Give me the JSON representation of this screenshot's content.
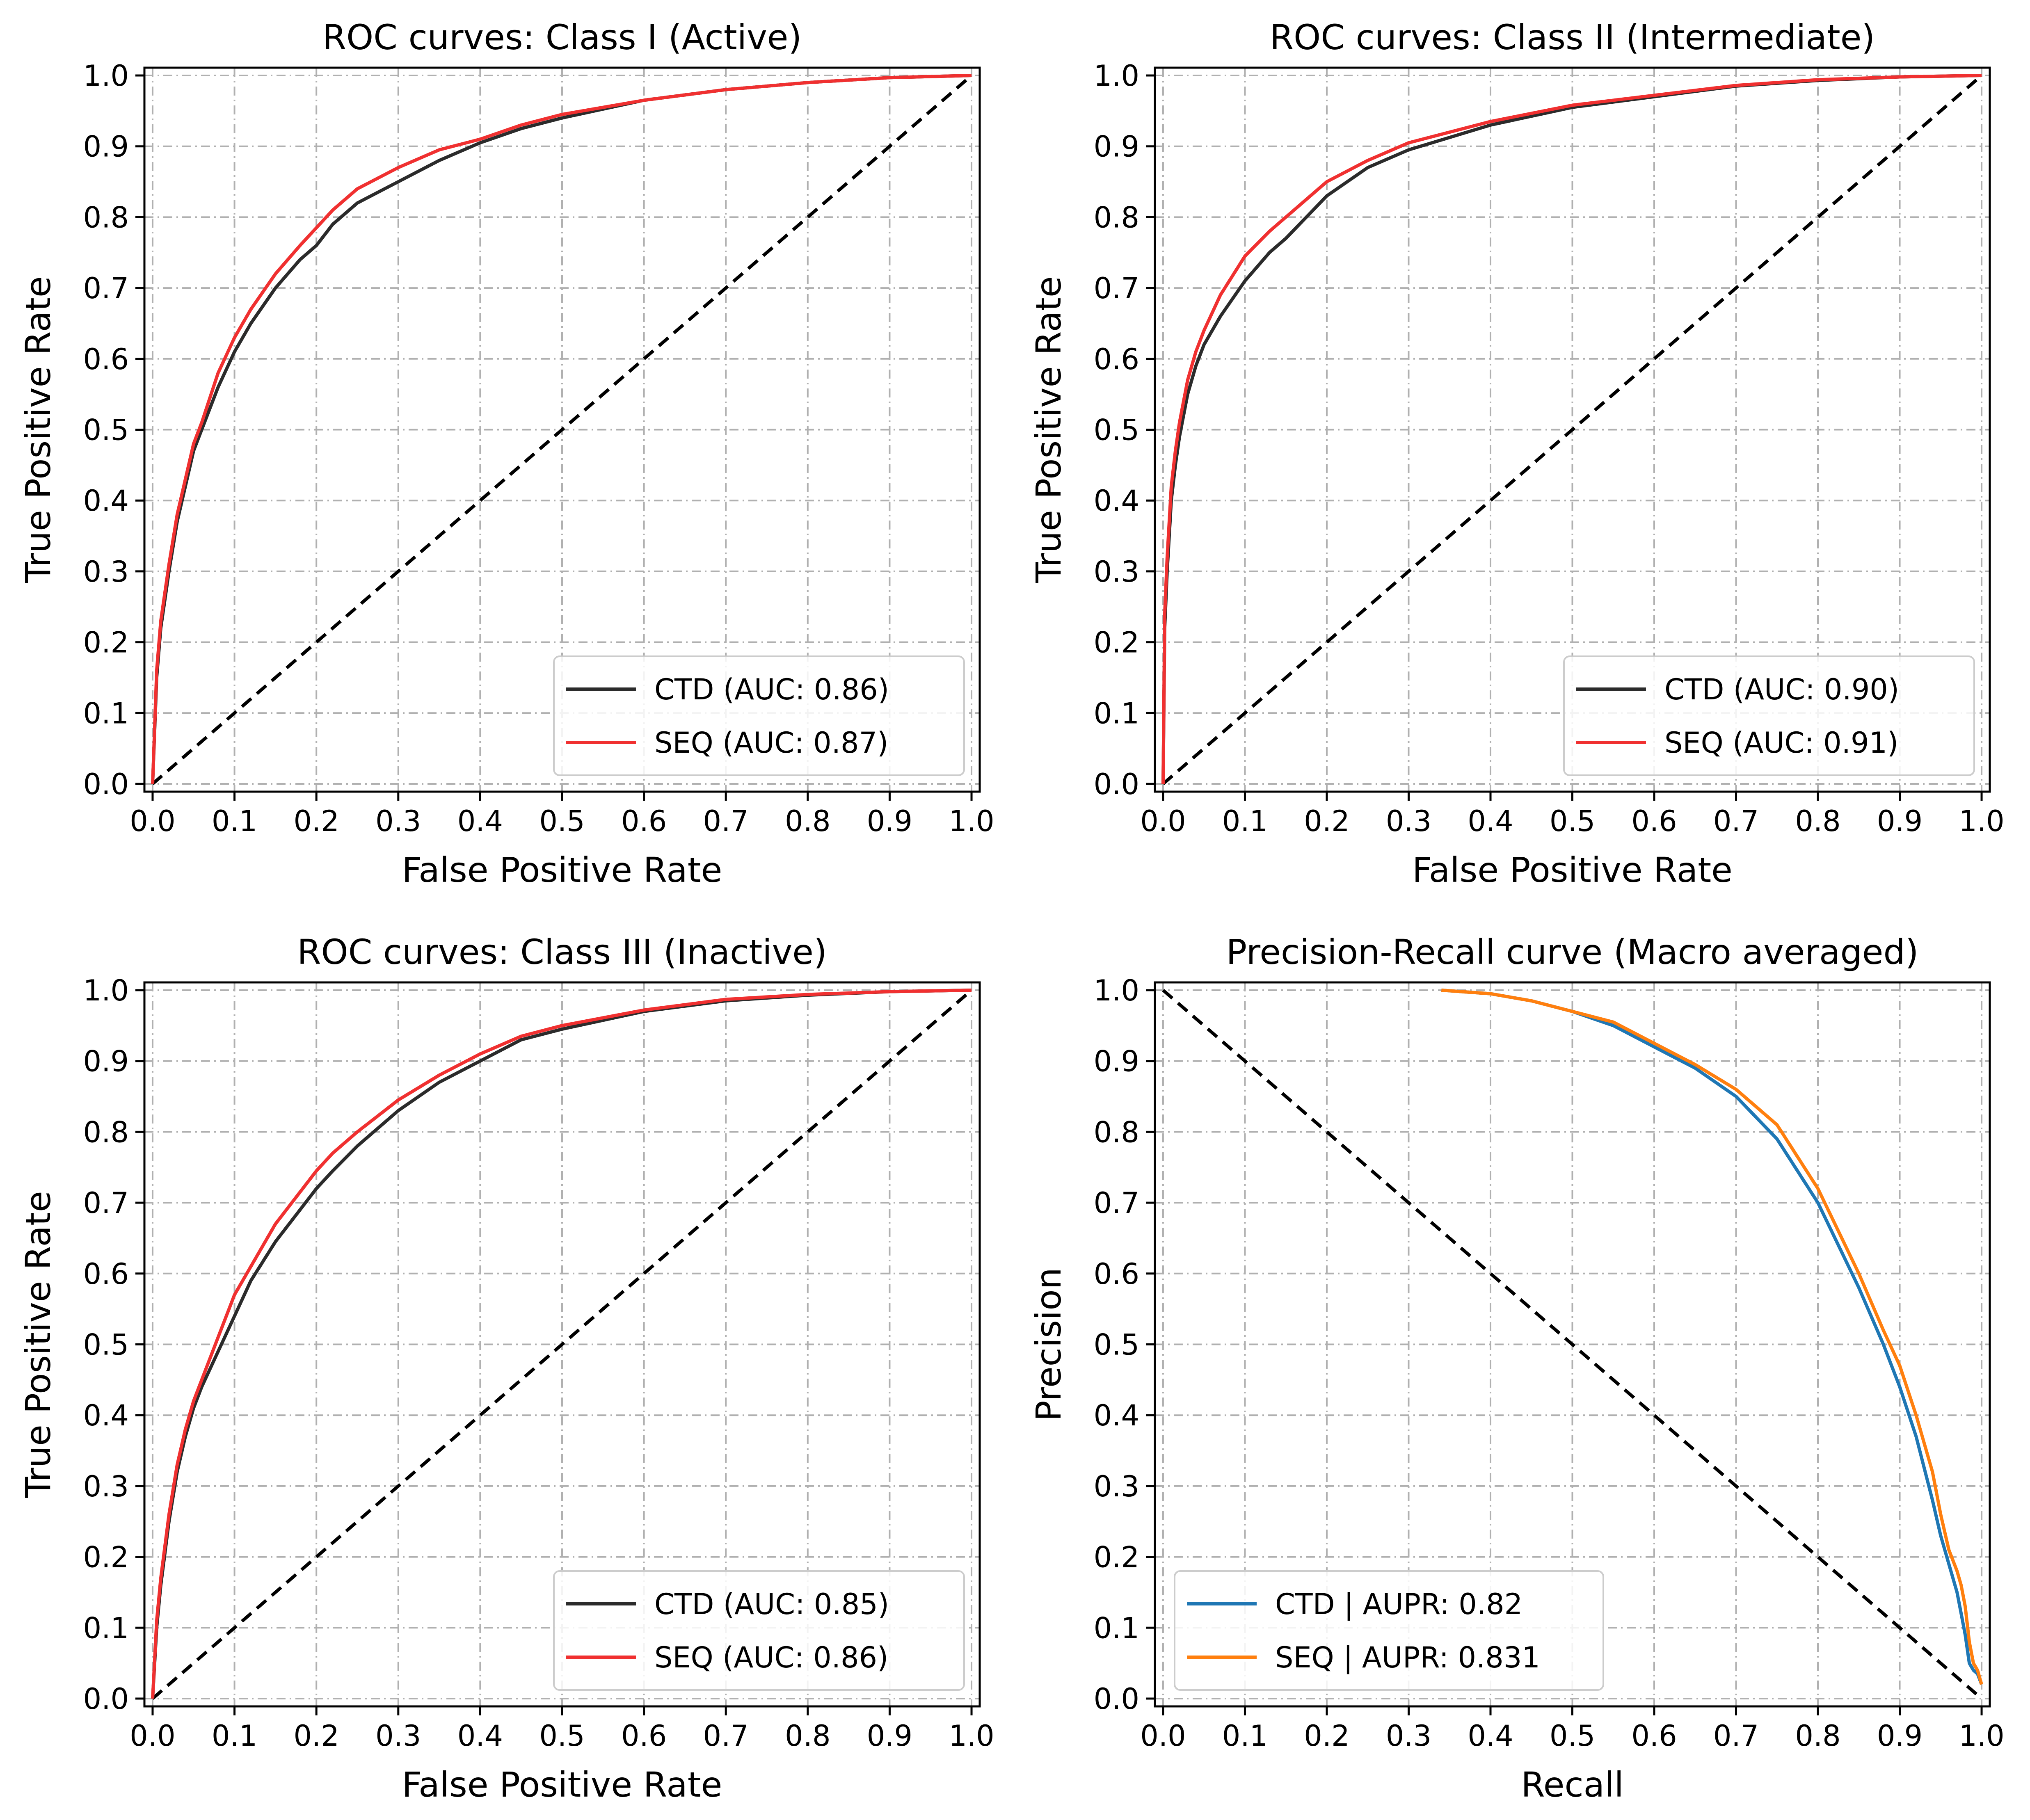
{
  "figure": {
    "colors": {
      "ctd_roc": "#2b2b2b",
      "seq_roc": "#f03030",
      "ctd_pr": "#1f77b4",
      "seq_pr": "#ff7f0e",
      "diagonal": "#000000",
      "grid": "#b0b0b0"
    }
  },
  "chart_data": [
    {
      "type": "line",
      "title": "ROC curves: Class I (Active)",
      "xlabel": "False Positive Rate",
      "ylabel": "True Positive Rate",
      "xlim": [
        0,
        1
      ],
      "ylim": [
        0,
        1
      ],
      "xticks": [
        "0.0",
        "0.1",
        "0.2",
        "0.3",
        "0.4",
        "0.5",
        "0.6",
        "0.7",
        "0.8",
        "0.9",
        "1.0"
      ],
      "yticks": [
        "0.0",
        "0.1",
        "0.2",
        "0.3",
        "0.4",
        "0.5",
        "0.6",
        "0.7",
        "0.8",
        "0.9",
        "1.0"
      ],
      "grid": true,
      "legend_position": "lower-right",
      "diagonal": "ascending",
      "series": [
        {
          "name": "CTD (AUC: 0.86)",
          "color": "#2b2b2b",
          "x": [
            0,
            0.005,
            0.01,
            0.02,
            0.03,
            0.04,
            0.05,
            0.06,
            0.08,
            0.1,
            0.12,
            0.15,
            0.18,
            0.2,
            0.22,
            0.25,
            0.3,
            0.35,
            0.4,
            0.45,
            0.5,
            0.6,
            0.7,
            0.8,
            0.9,
            1.0
          ],
          "y": [
            0,
            0.15,
            0.22,
            0.3,
            0.37,
            0.42,
            0.47,
            0.5,
            0.56,
            0.61,
            0.65,
            0.7,
            0.74,
            0.76,
            0.79,
            0.82,
            0.85,
            0.88,
            0.905,
            0.925,
            0.94,
            0.965,
            0.98,
            0.99,
            0.997,
            1.0
          ]
        },
        {
          "name": "SEQ (AUC: 0.87)",
          "color": "#f03030",
          "x": [
            0,
            0.005,
            0.01,
            0.02,
            0.03,
            0.04,
            0.05,
            0.06,
            0.08,
            0.1,
            0.12,
            0.15,
            0.18,
            0.2,
            0.22,
            0.25,
            0.3,
            0.35,
            0.4,
            0.45,
            0.5,
            0.6,
            0.7,
            0.8,
            0.9,
            1.0
          ],
          "y": [
            0,
            0.16,
            0.23,
            0.31,
            0.38,
            0.43,
            0.48,
            0.51,
            0.58,
            0.63,
            0.67,
            0.72,
            0.76,
            0.785,
            0.81,
            0.84,
            0.87,
            0.895,
            0.91,
            0.93,
            0.945,
            0.965,
            0.98,
            0.99,
            0.997,
            1.0
          ]
        }
      ]
    },
    {
      "type": "line",
      "title": "ROC curves: Class II (Intermediate)",
      "xlabel": "False Positive Rate",
      "ylabel": "True Positive Rate",
      "xlim": [
        0,
        1
      ],
      "ylim": [
        0,
        1
      ],
      "xticks": [
        "0.0",
        "0.1",
        "0.2",
        "0.3",
        "0.4",
        "0.5",
        "0.6",
        "0.7",
        "0.8",
        "0.9",
        "1.0"
      ],
      "yticks": [
        "0.0",
        "0.1",
        "0.2",
        "0.3",
        "0.4",
        "0.5",
        "0.6",
        "0.7",
        "0.8",
        "0.9",
        "1.0"
      ],
      "grid": true,
      "legend_position": "lower-right",
      "diagonal": "ascending",
      "series": [
        {
          "name": "CTD (AUC: 0.90)",
          "color": "#2b2b2b",
          "x": [
            0,
            0.002,
            0.005,
            0.01,
            0.015,
            0.02,
            0.03,
            0.04,
            0.05,
            0.07,
            0.1,
            0.13,
            0.15,
            0.2,
            0.25,
            0.3,
            0.4,
            0.5,
            0.6,
            0.7,
            0.8,
            0.9,
            1.0
          ],
          "y": [
            0,
            0.22,
            0.3,
            0.4,
            0.45,
            0.49,
            0.55,
            0.59,
            0.62,
            0.66,
            0.71,
            0.75,
            0.77,
            0.83,
            0.87,
            0.895,
            0.93,
            0.955,
            0.97,
            0.985,
            0.993,
            0.998,
            1.0
          ]
        },
        {
          "name": "SEQ (AUC: 0.91)",
          "color": "#f03030",
          "x": [
            0,
            0.002,
            0.005,
            0.01,
            0.015,
            0.02,
            0.03,
            0.04,
            0.05,
            0.07,
            0.1,
            0.13,
            0.15,
            0.2,
            0.25,
            0.3,
            0.4,
            0.5,
            0.6,
            0.7,
            0.8,
            0.9,
            1.0
          ],
          "y": [
            0,
            0.24,
            0.32,
            0.42,
            0.47,
            0.51,
            0.57,
            0.61,
            0.64,
            0.69,
            0.745,
            0.78,
            0.8,
            0.85,
            0.88,
            0.905,
            0.935,
            0.958,
            0.972,
            0.986,
            0.994,
            0.998,
            1.0
          ]
        }
      ]
    },
    {
      "type": "line",
      "title": "ROC curves: Class III (Inactive)",
      "xlabel": "False Positive Rate",
      "ylabel": "True Positive Rate",
      "xlim": [
        0,
        1
      ],
      "ylim": [
        0,
        1
      ],
      "xticks": [
        "0.0",
        "0.1",
        "0.2",
        "0.3",
        "0.4",
        "0.5",
        "0.6",
        "0.7",
        "0.8",
        "0.9",
        "1.0"
      ],
      "yticks": [
        "0.0",
        "0.1",
        "0.2",
        "0.3",
        "0.4",
        "0.5",
        "0.6",
        "0.7",
        "0.8",
        "0.9",
        "1.0"
      ],
      "grid": true,
      "legend_position": "lower-right",
      "diagonal": "ascending",
      "series": [
        {
          "name": "CTD (AUC: 0.85)",
          "color": "#2b2b2b",
          "x": [
            0,
            0.005,
            0.01,
            0.02,
            0.03,
            0.04,
            0.05,
            0.06,
            0.08,
            0.1,
            0.12,
            0.15,
            0.18,
            0.2,
            0.22,
            0.25,
            0.3,
            0.35,
            0.4,
            0.45,
            0.5,
            0.6,
            0.7,
            0.8,
            0.9,
            1.0
          ],
          "y": [
            0,
            0.1,
            0.16,
            0.25,
            0.32,
            0.37,
            0.41,
            0.44,
            0.49,
            0.54,
            0.59,
            0.645,
            0.69,
            0.72,
            0.745,
            0.78,
            0.83,
            0.87,
            0.9,
            0.93,
            0.945,
            0.97,
            0.985,
            0.993,
            0.998,
            1.0
          ]
        },
        {
          "name": "SEQ (AUC: 0.86)",
          "color": "#f03030",
          "x": [
            0,
            0.005,
            0.01,
            0.02,
            0.03,
            0.04,
            0.05,
            0.06,
            0.08,
            0.1,
            0.12,
            0.15,
            0.18,
            0.2,
            0.22,
            0.25,
            0.3,
            0.35,
            0.4,
            0.45,
            0.5,
            0.6,
            0.7,
            0.8,
            0.9,
            1.0
          ],
          "y": [
            0,
            0.11,
            0.17,
            0.26,
            0.33,
            0.38,
            0.42,
            0.45,
            0.51,
            0.57,
            0.61,
            0.67,
            0.715,
            0.745,
            0.77,
            0.8,
            0.845,
            0.88,
            0.91,
            0.935,
            0.95,
            0.972,
            0.987,
            0.994,
            0.998,
            1.0
          ]
        }
      ]
    },
    {
      "type": "line",
      "title": "Precision-Recall curve (Macro averaged)",
      "xlabel": "Recall",
      "ylabel": "Precision",
      "xlim": [
        0,
        1
      ],
      "ylim": [
        0,
        1
      ],
      "xticks": [
        "0.0",
        "0.1",
        "0.2",
        "0.3",
        "0.4",
        "0.5",
        "0.6",
        "0.7",
        "0.8",
        "0.9",
        "1.0"
      ],
      "yticks": [
        "0.0",
        "0.1",
        "0.2",
        "0.3",
        "0.4",
        "0.5",
        "0.6",
        "0.7",
        "0.8",
        "0.9",
        "1.0"
      ],
      "grid": true,
      "legend_position": "lower-left",
      "diagonal": "descending",
      "series": [
        {
          "name": "CTD | AUPR: 0.82",
          "color": "#1f77b4",
          "x": [
            0.34,
            0.4,
            0.45,
            0.5,
            0.55,
            0.6,
            0.65,
            0.7,
            0.75,
            0.8,
            0.85,
            0.88,
            0.9,
            0.92,
            0.94,
            0.95,
            0.96,
            0.97,
            0.975,
            0.98,
            0.985,
            0.99,
            0.995,
            1.0
          ],
          "y": [
            1.0,
            0.995,
            0.985,
            0.97,
            0.95,
            0.92,
            0.89,
            0.85,
            0.79,
            0.7,
            0.58,
            0.5,
            0.44,
            0.37,
            0.28,
            0.23,
            0.19,
            0.15,
            0.12,
            0.09,
            0.05,
            0.04,
            0.035,
            0.02
          ]
        },
        {
          "name": "SEQ | AUPR: 0.831",
          "color": "#ff7f0e",
          "x": [
            0.34,
            0.4,
            0.45,
            0.5,
            0.55,
            0.6,
            0.65,
            0.7,
            0.75,
            0.8,
            0.85,
            0.88,
            0.9,
            0.92,
            0.94,
            0.95,
            0.96,
            0.97,
            0.975,
            0.98,
            0.985,
            0.99,
            0.995,
            1.0
          ],
          "y": [
            1.0,
            0.995,
            0.985,
            0.97,
            0.955,
            0.925,
            0.895,
            0.86,
            0.81,
            0.72,
            0.6,
            0.52,
            0.47,
            0.4,
            0.32,
            0.26,
            0.21,
            0.18,
            0.16,
            0.13,
            0.08,
            0.05,
            0.04,
            0.02
          ]
        }
      ]
    }
  ]
}
